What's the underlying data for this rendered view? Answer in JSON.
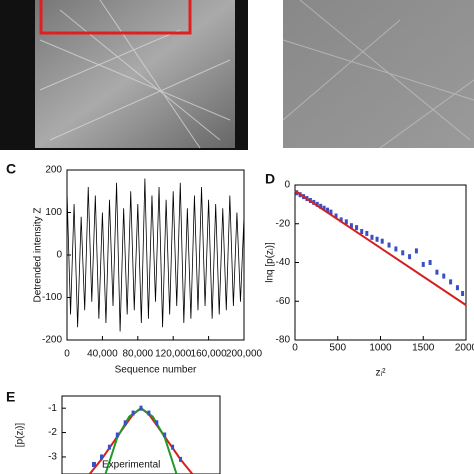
{
  "chart_data": [
    {
      "type": "line",
      "label": "C",
      "xlabel": "Sequence number",
      "ylabel": "Detrended intensity Z",
      "x": [
        0,
        4000,
        8000,
        12000,
        16000,
        20000,
        24000,
        28000,
        32000,
        36000,
        40000,
        44000,
        48000,
        52000,
        56000,
        60000,
        64000,
        68000,
        72000,
        76000,
        80000,
        84000,
        88000,
        92000,
        96000,
        100000,
        104000,
        108000,
        112000,
        116000,
        120000,
        124000,
        128000,
        132000,
        136000,
        140000,
        144000,
        148000,
        152000,
        156000,
        160000,
        164000,
        168000,
        172000,
        176000,
        180000,
        184000,
        188000,
        192000,
        196000,
        200000
      ],
      "series": [
        {
          "color": "#000000",
          "values": [
            150,
            -140,
            120,
            -170,
            90,
            -130,
            160,
            -110,
            140,
            -150,
            100,
            -160,
            130,
            -120,
            170,
            -180,
            110,
            -140,
            150,
            -130,
            120,
            -160,
            180,
            -150,
            140,
            -110,
            160,
            -170,
            130,
            -140,
            150,
            -120,
            170,
            -160,
            110,
            -150,
            140,
            -130,
            160,
            -120,
            130,
            -150,
            120,
            -140,
            110,
            -130,
            140,
            -120,
            100,
            -110,
            90
          ]
        }
      ],
      "xlim": [
        0,
        200000
      ],
      "ylim": [
        -200,
        200
      ],
      "xticks": [
        0,
        {
          "value": 40000,
          "label": "40,000"
        },
        {
          "value": 80000,
          "label": "80,000"
        },
        {
          "value": 120000,
          "label": "120,000"
        },
        {
          "value": 160000,
          "label": "160,000"
        },
        {
          "value": 200000,
          "label": "200,000"
        }
      ],
      "yticks": [
        -200,
        -100,
        0,
        100,
        200
      ]
    },
    {
      "type": "scatter",
      "label": "D",
      "xlabel": "zᵢ²",
      "ylabel": "lnq [p(zᵢ)]",
      "series": [
        {
          "mode": "markers",
          "color": "#3a4fc4",
          "x": [
            20,
            60,
            100,
            140,
            180,
            220,
            260,
            300,
            340,
            380,
            420,
            480,
            540,
            600,
            660,
            720,
            780,
            840,
            900,
            960,
            1020,
            1100,
            1180,
            1260,
            1340,
            1420,
            1500,
            1580,
            1660,
            1740,
            1820,
            1900,
            1960
          ],
          "values": [
            -4,
            -5,
            -6,
            -7,
            -8,
            -9,
            -10,
            -11,
            -12,
            -13,
            -14,
            -16,
            -18,
            -19,
            -21,
            -22,
            -24,
            -25,
            -27,
            -28,
            -29,
            -31,
            -33,
            -35,
            -37,
            -34,
            -41,
            -40,
            -45,
            -47,
            -50,
            -53,
            -56
          ]
        },
        {
          "mode": "line",
          "color": "#d42020",
          "x": [
            0,
            2000
          ],
          "values": [
            -3,
            -62
          ]
        }
      ],
      "xlim": [
        0,
        2000
      ],
      "ylim": [
        -80,
        0
      ],
      "xticks": [
        0,
        500,
        1000,
        1500,
        2000
      ],
      "yticks": [
        -80,
        -60,
        -40,
        -20,
        0
      ]
    },
    {
      "type": "scatter",
      "label": "E",
      "ylabel": "[p(zᵢ)]",
      "series": [
        {
          "mode": "line",
          "color": "#d42020",
          "x": [
            -0.65,
            -0.5,
            -0.35,
            -0.2,
            -0.1,
            0,
            0.1,
            0.2,
            0.35,
            0.5,
            0.65
          ],
          "values": [
            -3.7,
            -3.1,
            -2.4,
            -1.7,
            -1.25,
            -1,
            -1.25,
            -1.7,
            -2.4,
            -3.1,
            -3.7
          ]
        },
        {
          "mode": "line",
          "color": "#1f9a2a",
          "x": [
            -0.45,
            -0.3,
            -0.15,
            0,
            0.15,
            0.3,
            0.45
          ],
          "values": [
            -3.7,
            -2.2,
            -1.35,
            -1,
            -1.35,
            -2.2,
            -3.7
          ]
        },
        {
          "mode": "markers",
          "name": "Experimental",
          "color": "#3a4fc4",
          "x": [
            -0.5,
            -0.4,
            -0.3,
            -0.2,
            -0.1,
            0,
            0.1,
            0.2,
            0.3,
            0.4,
            0.5
          ],
          "values": [
            -3.0,
            -2.6,
            -2.1,
            -1.6,
            -1.2,
            -1,
            -1.2,
            -1.6,
            -2.1,
            -2.6,
            -3.1
          ]
        }
      ],
      "xlim": [
        -1,
        1
      ],
      "ylim": [
        -3.7,
        -0.5
      ],
      "yticks": [
        -3,
        -2,
        -1
      ]
    }
  ]
}
